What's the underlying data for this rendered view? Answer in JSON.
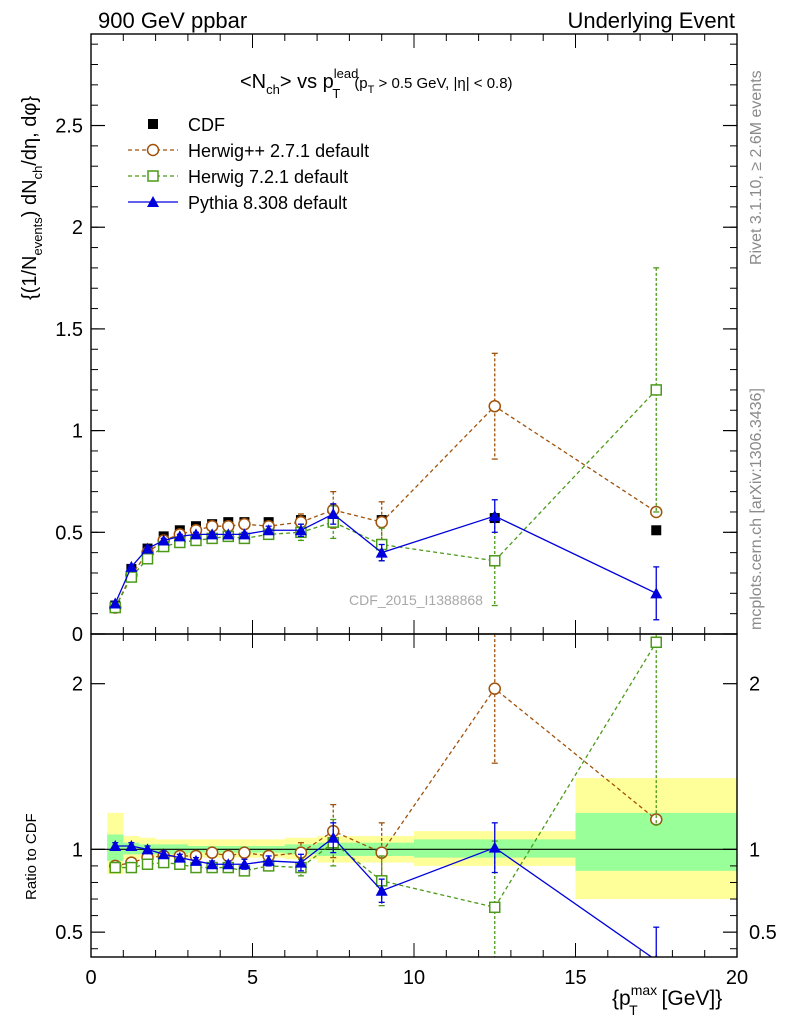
{
  "header": {
    "left": "900 GeV ppbar",
    "right": "Underlying Event"
  },
  "side_labels": {
    "rivet": "Rivet 3.1.10, ≥ 2.6M events",
    "mcplots": "mcplots.cern.ch [arXiv:1306.3436]"
  },
  "chart_data": [
    {
      "type": "scatter",
      "title_parts": {
        "pre": "<N",
        "sub1": "ch",
        "mid": "> vs p",
        "sup": "lead",
        "sub2": "T",
        "cut1": "(p",
        "cut_sub": "T",
        "cut2": " > 0.5 GeV, |η| < 0.8)"
      },
      "ylabel_parts": {
        "a": "{(1/N",
        "a_sub": "events",
        "b": ") dN",
        "b_sub": "ch",
        "c": "/dη, dφ}"
      },
      "watermark": "CDF_2015_I1388868",
      "xlim": [
        0,
        20
      ],
      "ylim": [
        0,
        2.95
      ],
      "y_ticks": [
        "0",
        "0.5",
        "1",
        "1.5",
        "2",
        "2.5"
      ],
      "y_tick_values": [
        0,
        0.5,
        1,
        1.5,
        2,
        2.5
      ],
      "legend_position": "top-left",
      "series": [
        {
          "name": "CDF",
          "color": "#000000",
          "marker": "filled-square",
          "x": [
            0.75,
            1.25,
            1.75,
            2.25,
            2.75,
            3.25,
            3.75,
            4.25,
            4.75,
            5.5,
            6.5,
            7.5,
            9.0,
            12.5,
            17.5
          ],
          "y": [
            0.14,
            0.32,
            0.42,
            0.48,
            0.51,
            0.53,
            0.54,
            0.55,
            0.55,
            0.55,
            0.56,
            0.55,
            0.56,
            0.57,
            0.51
          ],
          "err": [
            0,
            0,
            0,
            0,
            0,
            0,
            0,
            0,
            0,
            0,
            0,
            0,
            0,
            0,
            0
          ]
        },
        {
          "name": "Herwig++ 2.7.1 default",
          "color": "#a0520a",
          "marker": "open-circle",
          "x": [
            0.75,
            1.25,
            1.75,
            2.25,
            2.75,
            3.25,
            3.75,
            4.25,
            4.75,
            5.5,
            6.5,
            7.5,
            9.0,
            12.5,
            17.5
          ],
          "y": [
            0.13,
            0.29,
            0.4,
            0.46,
            0.49,
            0.51,
            0.53,
            0.53,
            0.54,
            0.53,
            0.55,
            0.61,
            0.55,
            1.12,
            0.6
          ],
          "err": [
            0.01,
            0.01,
            0.01,
            0.01,
            0.01,
            0.01,
            0.01,
            0.01,
            0.01,
            0.02,
            0.04,
            0.09,
            0.1,
            0.26,
            0
          ]
        },
        {
          "name": "Herwig 7.2.1 default",
          "color": "#4c9a1a",
          "marker": "open-square",
          "x": [
            0.75,
            1.25,
            1.75,
            2.25,
            2.75,
            3.25,
            3.75,
            4.25,
            4.75,
            5.5,
            6.5,
            7.5,
            9.0,
            12.5,
            17.5
          ],
          "y": [
            0.13,
            0.28,
            0.37,
            0.43,
            0.45,
            0.46,
            0.47,
            0.48,
            0.47,
            0.49,
            0.5,
            0.55,
            0.44,
            0.36,
            1.2
          ],
          "err": [
            0.01,
            0.01,
            0.01,
            0.01,
            0.01,
            0.01,
            0.01,
            0.01,
            0.01,
            0.02,
            0.04,
            0.08,
            0.08,
            0.22,
            0.6
          ]
        },
        {
          "name": "Pythia 8.308 default",
          "color": "#0000dd",
          "marker": "filled-triangle",
          "x": [
            0.75,
            1.25,
            1.75,
            2.25,
            2.75,
            3.25,
            3.75,
            4.25,
            4.75,
            5.5,
            6.5,
            7.5,
            9.0,
            12.5,
            17.5
          ],
          "y": [
            0.15,
            0.33,
            0.42,
            0.46,
            0.48,
            0.49,
            0.49,
            0.49,
            0.49,
            0.51,
            0.51,
            0.59,
            0.4,
            0.58,
            0.2
          ],
          "err": [
            0.01,
            0.01,
            0.01,
            0.01,
            0.01,
            0.01,
            0.01,
            0.01,
            0.01,
            0.02,
            0.03,
            0.05,
            0.04,
            0.08,
            0.13
          ]
        }
      ]
    },
    {
      "type": "scatter",
      "ylabel": "Ratio to CDF",
      "xlabel_parts": {
        "a": "{p",
        "sup": "max",
        "sub": "T",
        "b": " [GeV]}"
      },
      "xlim": [
        0,
        20
      ],
      "ylim": [
        0.35,
        2.3
      ],
      "x_ticks": [
        "0",
        "5",
        "10",
        "15",
        "20"
      ],
      "x_tick_values": [
        0,
        5,
        10,
        15,
        20
      ],
      "y_ticks": [
        "0.5",
        "1",
        "2"
      ],
      "y_tick_values": [
        0.5,
        1,
        2
      ],
      "band_edges": [
        0.5,
        1.0,
        1.5,
        2.0,
        2.5,
        3.0,
        3.5,
        4.0,
        4.5,
        5.0,
        6.0,
        7.0,
        8.0,
        10.0,
        15.0,
        20.0
      ],
      "band_inner": [
        [
          0.93,
          1.09
        ],
        [
          0.97,
          1.04
        ],
        [
          0.97,
          1.03
        ],
        [
          0.97,
          1.03
        ],
        [
          0.97,
          1.03
        ],
        [
          0.98,
          1.02
        ],
        [
          0.98,
          1.02
        ],
        [
          0.98,
          1.02
        ],
        [
          0.98,
          1.02
        ],
        [
          0.98,
          1.02
        ],
        [
          0.97,
          1.03
        ],
        [
          0.96,
          1.04
        ],
        [
          0.96,
          1.04
        ],
        [
          0.95,
          1.06
        ],
        [
          0.87,
          1.22
        ]
      ],
      "band_outer": [
        [
          0.85,
          1.22
        ],
        [
          0.94,
          1.08
        ],
        [
          0.95,
          1.07
        ],
        [
          0.95,
          1.06
        ],
        [
          0.95,
          1.06
        ],
        [
          0.95,
          1.06
        ],
        [
          0.95,
          1.06
        ],
        [
          0.95,
          1.06
        ],
        [
          0.95,
          1.06
        ],
        [
          0.95,
          1.06
        ],
        [
          0.94,
          1.07
        ],
        [
          0.92,
          1.08
        ],
        [
          0.92,
          1.08
        ],
        [
          0.9,
          1.11
        ],
        [
          0.7,
          1.43
        ]
      ],
      "series": [
        {
          "name": "Herwig++ 2.7.1 default",
          "color": "#a0520a",
          "marker": "open-circle",
          "x": [
            0.75,
            1.25,
            1.75,
            2.25,
            2.75,
            3.25,
            3.75,
            4.25,
            4.75,
            5.5,
            6.5,
            7.5,
            9.0,
            12.5,
            17.5
          ],
          "y": [
            0.9,
            0.92,
            0.95,
            0.96,
            0.96,
            0.96,
            0.98,
            0.96,
            0.98,
            0.96,
            0.98,
            1.11,
            0.98,
            1.97,
            1.18
          ],
          "err": [
            0.02,
            0.02,
            0.02,
            0.02,
            0.02,
            0.02,
            0.02,
            0.02,
            0.03,
            0.03,
            0.06,
            0.16,
            0.18,
            0.45,
            0
          ]
        },
        {
          "name": "Herwig 7.2.1 default",
          "color": "#4c9a1a",
          "marker": "open-square",
          "x": [
            0.75,
            1.25,
            1.75,
            2.25,
            2.75,
            3.25,
            3.75,
            4.25,
            4.75,
            5.5,
            6.5,
            7.5,
            9.0,
            12.5,
            17.5
          ],
          "y": [
            0.89,
            0.89,
            0.91,
            0.92,
            0.91,
            0.89,
            0.89,
            0.89,
            0.87,
            0.9,
            0.89,
            1.04,
            0.81,
            0.65,
            2.25
          ],
          "err": [
            0.02,
            0.02,
            0.02,
            0.02,
            0.02,
            0.02,
            0.02,
            0.02,
            0.03,
            0.03,
            0.05,
            0.14,
            0.15,
            0.4,
            1.1
          ]
        },
        {
          "name": "Pythia 8.308 default",
          "color": "#0000dd",
          "marker": "filled-triangle",
          "x": [
            0.75,
            1.25,
            1.75,
            2.25,
            2.75,
            3.25,
            3.75,
            4.25,
            4.75,
            5.5,
            6.5,
            7.5,
            9.0,
            12.5,
            17.5
          ],
          "y": [
            1.02,
            1.02,
            1.0,
            0.97,
            0.95,
            0.93,
            0.91,
            0.91,
            0.91,
            0.93,
            0.92,
            1.07,
            0.75,
            1.01,
            0.33
          ],
          "err": [
            0.02,
            0.02,
            0.02,
            0.02,
            0.02,
            0.02,
            0.02,
            0.02,
            0.03,
            0.03,
            0.05,
            0.09,
            0.07,
            0.15,
            0.2
          ]
        }
      ]
    }
  ]
}
